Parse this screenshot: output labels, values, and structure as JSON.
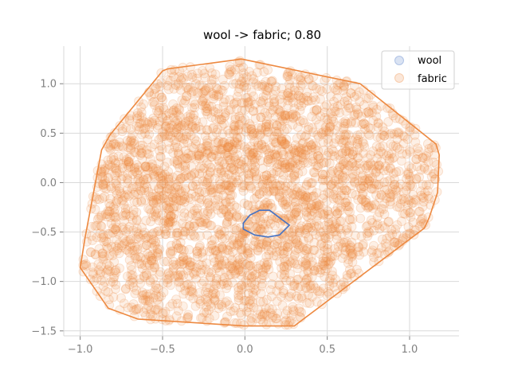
{
  "chart_data": {
    "type": "scatter",
    "title": "wool -> fabric; 0.80",
    "xlabel": "",
    "ylabel": "",
    "xlim": [
      -1.1,
      1.3
    ],
    "ylim": [
      -1.55,
      1.38
    ],
    "x_ticks": [
      -1.0,
      -0.5,
      0.0,
      0.5,
      1.0
    ],
    "x_tick_labels": [
      "−1.0",
      "−0.5",
      "0.0",
      "0.5",
      "1.0"
    ],
    "y_ticks": [
      -1.5,
      -1.0,
      -0.5,
      0.0,
      0.5,
      1.0
    ],
    "y_tick_labels": [
      "−1.5",
      "−1.0",
      "−0.5",
      "0.0",
      "0.5",
      "1.0"
    ],
    "grid": true,
    "legend_position": "top-right",
    "series": [
      {
        "name": "wool",
        "color": "#4472c4",
        "marker_alpha": 0.2,
        "hull": [
          [
            0.15,
            -0.28
          ],
          [
            0.27,
            -0.43
          ],
          [
            0.21,
            -0.53
          ],
          [
            0.14,
            -0.55
          ],
          [
            0.06,
            -0.53
          ],
          [
            -0.01,
            -0.47
          ],
          [
            -0.01,
            -0.41
          ],
          [
            0.03,
            -0.33
          ],
          [
            0.09,
            -0.28
          ]
        ]
      },
      {
        "name": "fabric",
        "color": "#ed8940",
        "marker_alpha": 0.2,
        "point_count_approx": 3000,
        "hull": [
          [
            -0.02,
            1.25
          ],
          [
            0.7,
            1.0
          ],
          [
            1.16,
            0.39
          ],
          [
            1.18,
            0.28
          ],
          [
            1.17,
            -0.1
          ],
          [
            1.12,
            -0.35
          ],
          [
            1.09,
            -0.46
          ],
          [
            0.3,
            -1.45
          ],
          [
            0.0,
            -1.45
          ],
          [
            -0.65,
            -1.38
          ],
          [
            -0.83,
            -1.27
          ],
          [
            -1.0,
            -0.86
          ],
          [
            -0.97,
            -0.55
          ],
          [
            -0.87,
            0.33
          ],
          [
            -0.82,
            0.48
          ],
          [
            -0.5,
            1.13
          ],
          [
            -0.47,
            1.15
          ]
        ]
      }
    ]
  }
}
